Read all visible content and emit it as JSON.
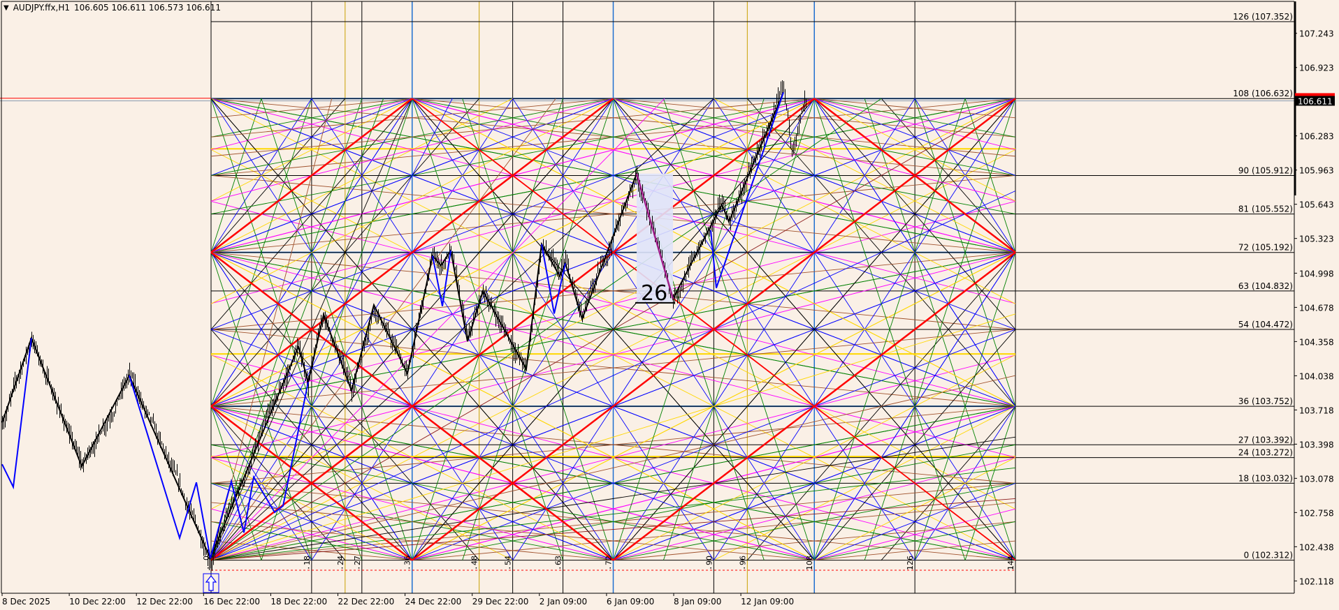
{
  "header": {
    "menu_icon": "triangle-down-icon",
    "symbol": "AUDJPY.ffx,H1",
    "ohlc": "106.605 106.611 106.573 106.611"
  },
  "colors": {
    "background": "#faf0e6",
    "red": "#ff0000",
    "blue": "#0000ff",
    "green": "#008000",
    "black": "#000000",
    "brown": "#a0522d",
    "magenta": "#ff00ff",
    "gold": "#ffd700",
    "darkred": "#8b1a1a",
    "steelblue": "#1e6fd0",
    "goldenrod": "#c8a000",
    "pattern": "#a0208a",
    "highlight": "#dfe3fa",
    "bid_line": "#8a9ab0"
  },
  "chart_data": {
    "type": "ohlc-bar",
    "symbol": "AUDJPY.ffx",
    "timeframe": "H1",
    "current_price": 106.611,
    "y_axis": {
      "range": [
        102.003,
        107.555
      ],
      "ticks": [
        "107.243",
        "106.923",
        "106.283",
        "105.963",
        "105.643",
        "105.323",
        "104.998",
        "104.678",
        "104.358",
        "104.038",
        "103.718",
        "103.398",
        "103.078",
        "102.758",
        "102.438",
        "102.118"
      ]
    },
    "x_axis": {
      "ticks": [
        "8 Dec 2025",
        "10 Dec 22:00",
        "12 Dec 22:00",
        "16 Dec 22:00",
        "18 Dec 22:00",
        "22 Dec 22:00",
        "24 Dec 22:00",
        "29 Dec 22:00",
        "2 Jan 09:00",
        "6 Jan 09:00",
        "8 Jan 09:00",
        "12 Jan 09:00"
      ]
    },
    "price_path_bars": [
      [
        0,
        103.6
      ],
      [
        21,
        104.39
      ],
      [
        57,
        103.19
      ],
      [
        91,
        104.04
      ],
      [
        149,
        102.33
      ],
      [
        212,
        104.31
      ],
      [
        219,
        103.98
      ],
      [
        230,
        104.61
      ],
      [
        250,
        103.9
      ],
      [
        266,
        104.7
      ],
      [
        290,
        104.06
      ],
      [
        308,
        105.16
      ],
      [
        314,
        105.07
      ],
      [
        321,
        105.21
      ],
      [
        333,
        104.36
      ],
      [
        344,
        104.83
      ],
      [
        375,
        104.1
      ],
      [
        386,
        105.27
      ],
      [
        399,
        104.97
      ],
      [
        403,
        105.09
      ],
      [
        415,
        104.57
      ],
      [
        454,
        105.93
      ],
      [
        480,
        104.76
      ],
      [
        515,
        105.64
      ],
      [
        520,
        105.48
      ],
      [
        559,
        106.69
      ],
      [
        565,
        106.17
      ],
      [
        575,
        106.611
      ]
    ],
    "zigzag_black": [
      [
        0,
        103.6
      ],
      [
        21,
        104.39
      ],
      [
        57,
        103.19
      ],
      [
        91,
        104.04
      ],
      [
        149,
        102.33
      ],
      [
        212,
        104.31
      ],
      [
        219,
        103.98
      ],
      [
        230,
        104.61
      ],
      [
        250,
        103.9
      ],
      [
        266,
        104.7
      ],
      [
        290,
        104.06
      ],
      [
        308,
        105.16
      ],
      [
        314,
        105.07
      ],
      [
        321,
        105.21
      ],
      [
        333,
        104.36
      ],
      [
        344,
        104.83
      ],
      [
        375,
        104.1
      ],
      [
        386,
        105.27
      ],
      [
        399,
        104.97
      ],
      [
        403,
        105.09
      ],
      [
        415,
        104.57
      ],
      [
        454,
        105.93
      ],
      [
        480,
        104.76
      ],
      [
        515,
        105.64
      ],
      [
        520,
        105.48
      ],
      [
        559,
        106.69
      ]
    ],
    "zigzag_blue": [
      [
        [
          0,
          103.21
        ],
        [
          8,
          102.997
        ],
        [
          21,
          104.39
        ]
      ],
      [
        [
          91,
          104.04
        ],
        [
          127,
          102.52
        ],
        [
          139,
          103.04
        ],
        [
          149,
          102.33
        ],
        [
          164,
          103.05
        ],
        [
          173,
          102.57
        ],
        [
          180,
          103.09
        ],
        [
          195,
          102.76
        ],
        [
          201,
          102.82
        ],
        [
          219,
          103.98
        ]
      ],
      [
        [
          308,
          105.16
        ],
        [
          315,
          104.69
        ],
        [
          321,
          105.21
        ]
      ],
      [
        [
          386,
          105.27
        ],
        [
          395,
          104.62
        ],
        [
          403,
          105.09
        ]
      ],
      [
        [
          507,
          105.4
        ],
        [
          511,
          104.86
        ],
        [
          559,
          106.69
        ]
      ]
    ],
    "pattern": {
      "from": [
        454,
        105.93
      ],
      "to": [
        480,
        104.76
      ],
      "label": "26"
    },
    "gann": {
      "time_marks": [
        "0",
        "18",
        "24",
        "27",
        "36",
        "48",
        "54",
        "63",
        "72",
        "90",
        "96",
        "108",
        "126",
        "144"
      ],
      "levels": [
        {
          "label": "126 (107.352)",
          "price": 107.352
        },
        {
          "label": "108 (106.632)",
          "price": 106.632
        },
        {
          "label": "90 (105.912)",
          "price": 105.912
        },
        {
          "label": "81 (105.552)",
          "price": 105.552
        },
        {
          "label": "72 (105.192)",
          "price": 105.192
        },
        {
          "label": "63 (104.832)",
          "price": 104.832
        },
        {
          "label": "54 (104.472)",
          "price": 104.472
        },
        {
          "label": "36 (103.752)",
          "price": 103.752
        },
        {
          "label": "27 (103.392)",
          "price": 103.392
        },
        {
          "label": "24 (103.272)",
          "price": 103.272
        },
        {
          "label": "18 (103.032)",
          "price": 103.032
        },
        {
          "label": "0 (102.312)",
          "price": 102.312
        }
      ],
      "red_lines_t_minus_level": [
        -72,
        -36,
        0,
        36,
        72
      ],
      "red_lines_t_plus_level": [
        36,
        72,
        144,
        216
      ],
      "fan_slopes": [
        {
          "slope": 0.125,
          "color": "brown"
        },
        {
          "slope": 0.25,
          "color": "green"
        },
        {
          "slope": 0.333,
          "color": "magenta"
        },
        {
          "slope": 0.5,
          "color": "blue"
        },
        {
          "slope": 0.667,
          "color": "gold"
        },
        {
          "slope": 1.5,
          "color": "black"
        },
        {
          "slope": 2,
          "color": "blue"
        },
        {
          "slope": 4,
          "color": "green"
        }
      ]
    }
  },
  "price_axis": {
    "current_label": "106.611"
  }
}
